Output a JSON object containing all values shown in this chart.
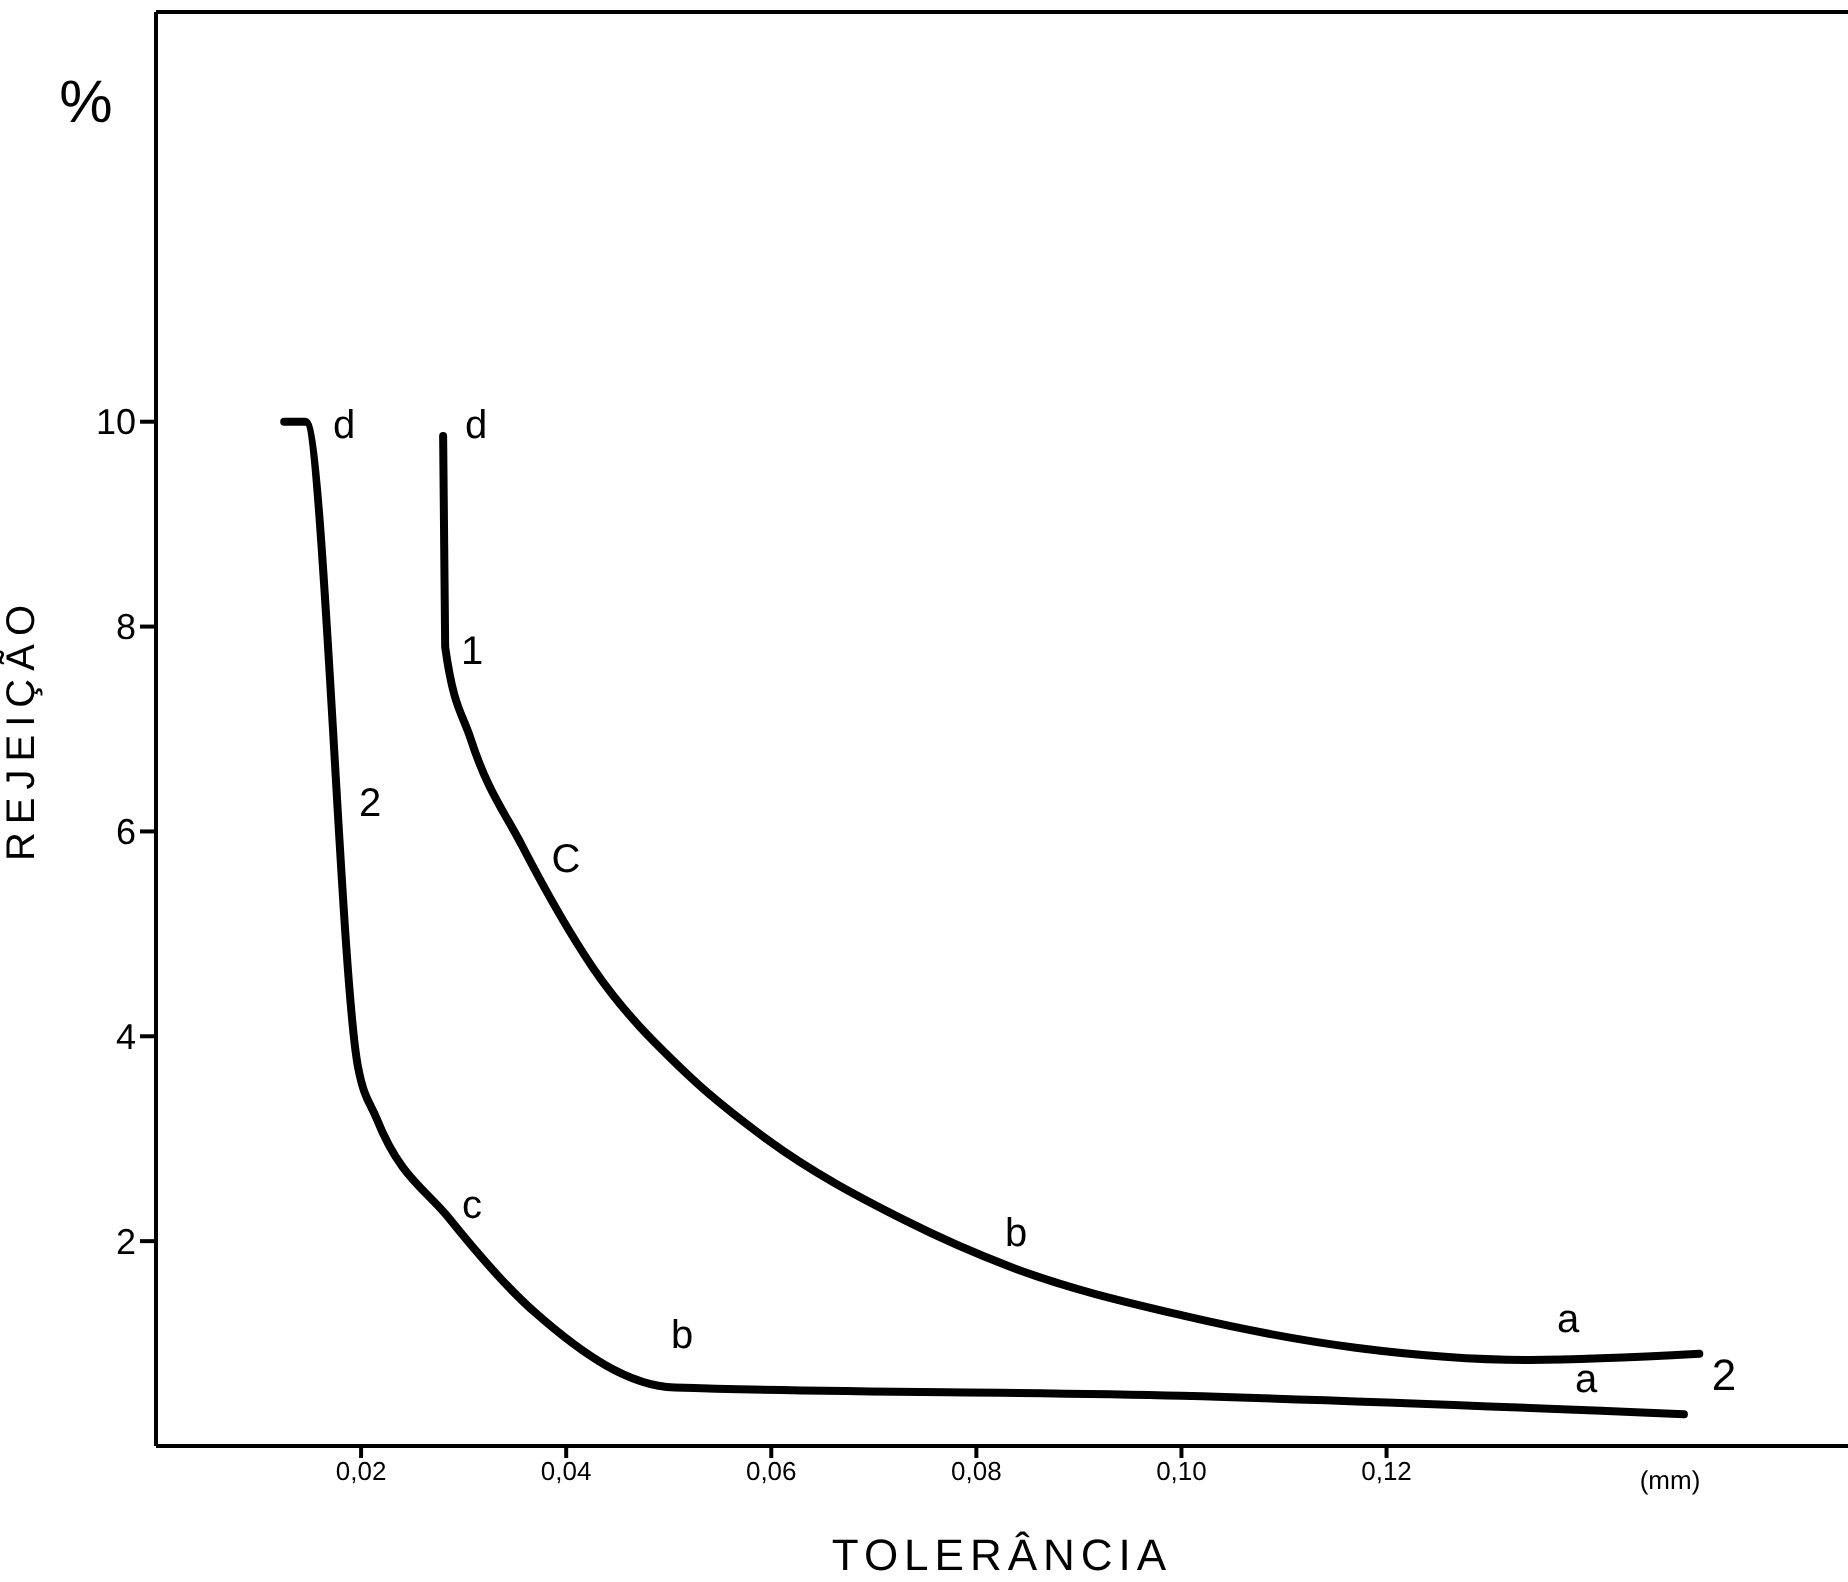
{
  "chart_data": {
    "type": "line",
    "xlabel": "TOLERÂNCIA",
    "ylabel": "REJEIÇÃO",
    "xlim": [
      0,
      0.165
    ],
    "ylim": [
      0,
      14
    ],
    "xticks": [
      {
        "value": 0.02,
        "label": "0,02"
      },
      {
        "value": 0.04,
        "label": "0,04"
      },
      {
        "value": 0.06,
        "label": "0,06"
      },
      {
        "value": 0.08,
        "label": "0,08"
      },
      {
        "value": 0.1,
        "label": "0,10"
      },
      {
        "value": 0.12,
        "label": "0,12"
      }
    ],
    "yticks": [
      2,
      4,
      6,
      8,
      10
    ],
    "grid": false,
    "legend": false,
    "marker": "none",
    "line_style": "solid",
    "series": [
      {
        "color": "#000000",
        "x": [
          0.028,
          0.0282,
          0.0307,
          0.0357,
          0.0426,
          0.0518,
          0.0595,
          0.0731,
          0.0833,
          0.1003,
          0.117,
          0.134,
          0.1505
        ],
        "values": [
          9.86,
          7.8,
          6.9,
          5.86,
          4.67,
          3.63,
          3.0,
          2.2,
          1.75,
          1.27,
          0.96,
          0.84,
          0.9
        ]
      },
      {
        "color": "#000000",
        "x": [
          0.0125,
          0.0146,
          0.0197,
          0.0215,
          0.0286,
          0.037,
          0.0506,
          0.1,
          0.149
        ],
        "values": [
          10,
          10,
          3.7,
          3.2,
          2.22,
          1.3,
          0.57,
          0.49,
          0.31
        ]
      }
    ],
    "annotations": [
      "%",
      "(mm)",
      "2",
      "d",
      "2",
      "c",
      "b",
      "a",
      "d",
      "1",
      "C",
      "b",
      "a"
    ]
  }
}
